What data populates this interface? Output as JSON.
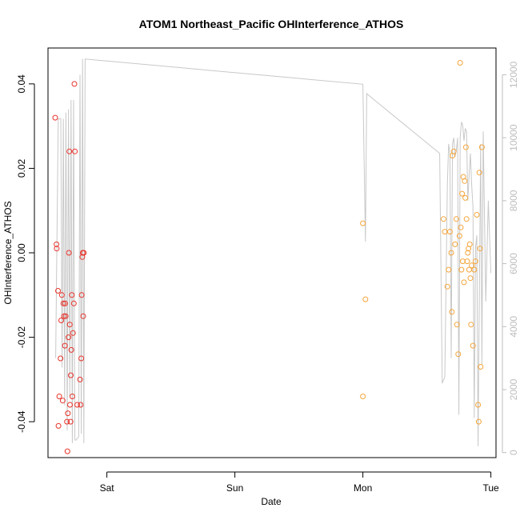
{
  "chart_data": {
    "type": "scatter",
    "title": "ATOM1 Northeast_Pacific OHInterference_ATHOS",
    "xlabel": "Date",
    "ylabel": "OHInterference_ATHOS",
    "x_ticks": [
      {
        "label": "Sat",
        "value": 1
      },
      {
        "label": "Sun",
        "value": 2
      },
      {
        "label": "Mon",
        "value": 3
      },
      {
        "label": "Tue",
        "value": 4
      }
    ],
    "xlim": [
      0.54,
      4.04
    ],
    "y_ticks": [
      -0.04,
      -0.02,
      0.0,
      0.02,
      0.04
    ],
    "y_tick_labels": [
      "-0.04",
      "-0.02",
      "0.00",
      "0.02",
      "0.04"
    ],
    "ylim": [
      -0.0485,
      0.0485
    ],
    "y2_ticks": [
      0,
      2000,
      4000,
      6000,
      8000,
      10000,
      12000
    ],
    "y2_tick_labels": [
      "0",
      "2000",
      "4000",
      "6000",
      "8000",
      "10000",
      "12000"
    ],
    "y2lim": [
      -160,
      12850
    ],
    "colors": {
      "series_1": "#e8332a",
      "series_2": "#f5a53a",
      "line": "#c8c8c8",
      "axes": "#000000",
      "right_axis": "#bdbdbd"
    },
    "series": [
      {
        "role": "points",
        "color": "#e8332a",
        "x": [
          0.596,
          0.606,
          0.608,
          0.618,
          0.622,
          0.628,
          0.638,
          0.643,
          0.648,
          0.655,
          0.66,
          0.665,
          0.672,
          0.674,
          0.678,
          0.688,
          0.692,
          0.695,
          0.7,
          0.703,
          0.707,
          0.71,
          0.712,
          0.716,
          0.718,
          0.722,
          0.726,
          0.73,
          0.735,
          0.742,
          0.746,
          0.75,
          0.768,
          0.79,
          0.795,
          0.8,
          0.803,
          0.808,
          0.811,
          0.815,
          0.82
        ],
        "y": [
          0.032,
          0.002,
          0.001,
          -0.009,
          -0.041,
          -0.034,
          -0.025,
          -0.016,
          -0.01,
          -0.035,
          -0.012,
          -0.015,
          -0.022,
          -0.012,
          -0.015,
          -0.04,
          -0.047,
          -0.038,
          -0.02,
          0.0,
          0.024,
          -0.017,
          -0.036,
          -0.04,
          -0.029,
          -0.023,
          -0.01,
          -0.034,
          -0.019,
          -0.012,
          0.04,
          0.024,
          -0.036,
          -0.03,
          -0.036,
          -0.025,
          -0.01,
          -0.001,
          0.0,
          -0.015,
          0.0
        ]
      },
      {
        "role": "points",
        "color": "#f5a53a",
        "x": [
          3.0,
          3.02,
          3.0,
          3.63,
          3.64,
          3.66,
          3.67,
          3.68,
          3.69,
          3.695,
          3.7,
          3.71,
          3.72,
          3.73,
          3.735,
          3.745,
          3.755,
          3.76,
          3.765,
          3.77,
          3.775,
          3.78,
          3.785,
          3.79,
          3.795,
          3.8,
          3.805,
          3.81,
          3.815,
          3.82,
          3.825,
          3.83,
          3.835,
          3.84,
          3.845,
          3.85,
          3.86,
          3.87,
          3.88,
          3.89,
          3.9,
          3.905,
          3.91,
          3.915,
          3.92,
          3.93
        ],
        "y": [
          0.007,
          -0.011,
          -0.034,
          0.008,
          0.005,
          -0.008,
          -0.004,
          0.005,
          0.0,
          -0.014,
          0.023,
          0.024,
          0.002,
          0.008,
          -0.017,
          -0.024,
          0.004,
          0.045,
          0.006,
          -0.004,
          0.014,
          -0.002,
          0.018,
          -0.007,
          0.017,
          0.013,
          0.025,
          0.008,
          -0.002,
          0.0,
          0.001,
          -0.004,
          0.002,
          -0.006,
          -0.017,
          -0.003,
          -0.022,
          -0.004,
          -0.002,
          0.009,
          -0.036,
          -0.04,
          0.019,
          0.001,
          -0.027,
          0.025
        ]
      },
      {
        "role": "line",
        "axis": "right",
        "color": "#c8c8c8",
        "x": [
          0.6,
          0.62,
          0.64,
          0.65,
          0.66,
          0.67,
          0.68,
          0.69,
          0.7,
          0.71,
          0.72,
          0.73,
          0.74,
          0.75,
          0.76,
          0.78,
          0.79,
          0.8,
          0.81,
          0.82,
          0.83,
          3.0,
          3.02,
          3.03,
          3.6,
          3.62,
          3.64,
          3.66,
          3.67,
          3.68,
          3.69,
          3.7,
          3.71,
          3.72,
          3.73,
          3.74,
          3.75,
          3.76,
          3.77,
          3.78,
          3.79,
          3.8,
          3.81,
          3.82,
          3.83,
          3.84,
          3.85,
          3.86,
          3.87,
          3.88,
          3.89,
          3.9,
          3.91,
          3.92,
          3.93,
          3.94,
          3.96,
          3.98,
          4.0
        ],
        "y": [
          3000,
          10600,
          10600,
          2700,
          10600,
          1500,
          10800,
          700,
          10900,
          1800,
          11200,
          300,
          11200,
          400,
          400,
          500,
          12000,
          600,
          12500,
          300,
          12500,
          11700,
          6700,
          11400,
          9500,
          2200,
          2400,
          8500,
          9800,
          9500,
          3000,
          9800,
          10000,
          9400,
          9600,
          10000,
          1200,
          10000,
          10500,
          10400,
          9900,
          10300,
          10200,
          8000,
          8800,
          9500,
          8500,
          7800,
          1100,
          6500,
          6900,
          200,
          5000,
          9800,
          2800,
          10200,
          4800,
          8000,
          5700
        ]
      }
    ]
  }
}
